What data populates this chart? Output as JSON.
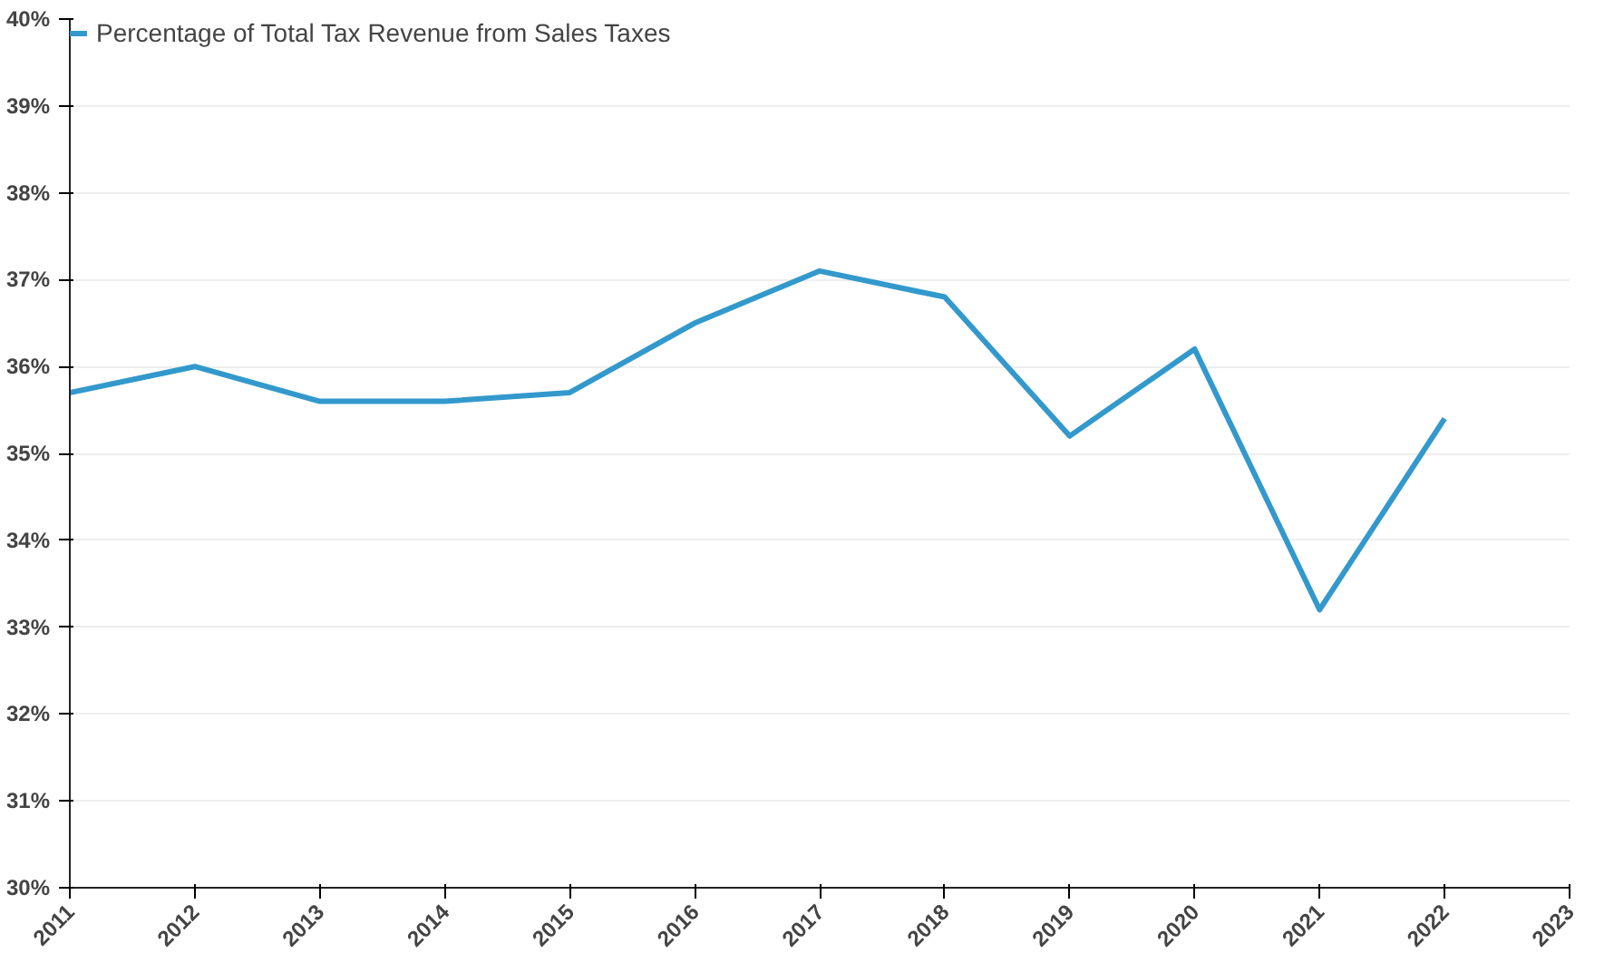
{
  "chart_data": {
    "type": "line",
    "x": [
      2011,
      2012,
      2013,
      2014,
      2015,
      2016,
      2017,
      2018,
      2019,
      2020,
      2021,
      2022
    ],
    "series": [
      {
        "name": "Percentage of Total Tax Revenue from Sales Taxes",
        "color": "#3399cc",
        "values": [
          35.7,
          36.0,
          35.6,
          35.6,
          35.7,
          36.5,
          37.1,
          36.8,
          35.2,
          36.2,
          33.2,
          35.4
        ]
      }
    ],
    "xlim": [
      2011,
      2023
    ],
    "xticks": [
      2011,
      2012,
      2013,
      2014,
      2015,
      2016,
      2017,
      2018,
      2019,
      2020,
      2021,
      2022,
      2023
    ],
    "ylim": [
      30,
      40
    ],
    "yticks": [
      {
        "value": 30,
        "label": "30%"
      },
      {
        "value": 31,
        "label": "31%"
      },
      {
        "value": 32,
        "label": "32%"
      },
      {
        "value": 33,
        "label": "33%"
      },
      {
        "value": 34,
        "label": "34%"
      },
      {
        "value": 35,
        "label": "35%"
      },
      {
        "value": 36,
        "label": "36%"
      },
      {
        "value": 37,
        "label": "37%"
      },
      {
        "value": 38,
        "label": "38%"
      },
      {
        "value": 39,
        "label": "39%"
      },
      {
        "value": 40,
        "label": "40%"
      }
    ],
    "grid": "y",
    "legend": "top left",
    "marker": "none",
    "line_style": "solid"
  }
}
